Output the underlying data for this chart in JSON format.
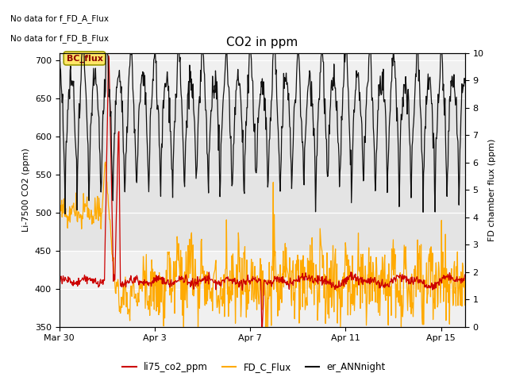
{
  "title": "CO2 in ppm",
  "ylabel_left": "Li-7500 CO2 (ppm)",
  "ylabel_right": "FD chamber flux (ppm)",
  "text_no_data_1": "No data for f_FD_A_Flux",
  "text_no_data_2": "No data for f_FD_B_Flux",
  "bc_flux_label": "BC_flux",
  "legend_entries": [
    "li75_co2_ppm",
    "FD_C_Flux",
    "er_ANNnight"
  ],
  "legend_colors": [
    "#cc0000",
    "#ffaa00",
    "#111111"
  ],
  "ylim_left": [
    350,
    710
  ],
  "ylim_right": [
    0.0,
    10.0
  ],
  "yticks_left": [
    350,
    400,
    450,
    500,
    550,
    600,
    650,
    700
  ],
  "yticks_right": [
    0.0,
    1.0,
    2.0,
    3.0,
    4.0,
    5.0,
    6.0,
    7.0,
    8.0,
    9.0,
    10.0
  ],
  "xtick_labels": [
    "Mar 30",
    "Apr 3",
    "Apr 7",
    "Apr 11",
    "Apr 15"
  ],
  "xtick_positions": [
    0,
    4,
    8,
    12,
    16
  ],
  "xlim": [
    0,
    17
  ],
  "background_color": "#ffffff",
  "plot_bg_color": "#f0f0f0",
  "shaded_band_y1": 450,
  "shaded_band_y2": 650,
  "shaded_band_color": "#e4e4e4",
  "figsize": [
    6.4,
    4.8
  ],
  "dpi": 100
}
